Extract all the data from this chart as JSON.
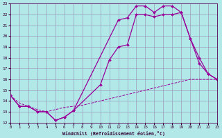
{
  "xlabel": "Windchill (Refroidissement éolien,°C)",
  "bg_color": "#b2e8e8",
  "grid_color": "#9999bb",
  "line_color": "#990099",
  "xlim": [
    0,
    23
  ],
  "ylim": [
    12,
    23
  ],
  "xticks": [
    0,
    1,
    2,
    3,
    4,
    5,
    6,
    7,
    8,
    9,
    10,
    11,
    12,
    13,
    14,
    15,
    16,
    17,
    18,
    19,
    20,
    21,
    22,
    23
  ],
  "yticks": [
    12,
    13,
    14,
    15,
    16,
    17,
    18,
    19,
    20,
    21,
    22,
    23
  ],
  "series1_x": [
    0,
    1,
    2,
    3,
    4,
    5,
    6,
    7,
    12,
    13,
    14,
    15,
    16,
    17,
    18,
    19,
    20,
    21,
    22,
    23
  ],
  "series1_y": [
    14.5,
    13.5,
    13.5,
    13.0,
    13.0,
    12.2,
    12.5,
    13.1,
    21.5,
    21.7,
    22.8,
    22.8,
    22.2,
    22.8,
    22.8,
    22.2,
    19.8,
    17.5,
    16.5,
    16.0
  ],
  "series2_x": [
    0,
    1,
    2,
    3,
    4,
    5,
    6,
    7,
    8,
    9,
    10,
    11,
    12,
    13,
    14,
    15,
    16,
    17,
    18,
    19,
    20,
    21,
    22,
    23
  ],
  "series2_y": [
    14.5,
    13.8,
    13.5,
    13.2,
    13.0,
    13.2,
    13.4,
    13.5,
    13.6,
    13.8,
    14.0,
    14.2,
    14.4,
    14.6,
    14.8,
    15.0,
    15.2,
    15.4,
    15.6,
    15.8,
    16.0,
    16.0,
    16.0,
    16.0
  ],
  "series3_x": [
    0,
    1,
    2,
    3,
    4,
    5,
    6,
    7,
    10,
    11,
    12,
    13,
    14,
    15,
    16,
    17,
    18,
    19,
    20,
    21,
    22,
    23
  ],
  "series3_y": [
    14.5,
    13.5,
    13.5,
    13.0,
    13.0,
    12.2,
    12.5,
    13.1,
    15.5,
    17.8,
    19.0,
    19.2,
    22.0,
    22.0,
    21.8,
    22.0,
    22.0,
    22.2,
    19.8,
    18.0,
    16.5,
    16.0
  ]
}
